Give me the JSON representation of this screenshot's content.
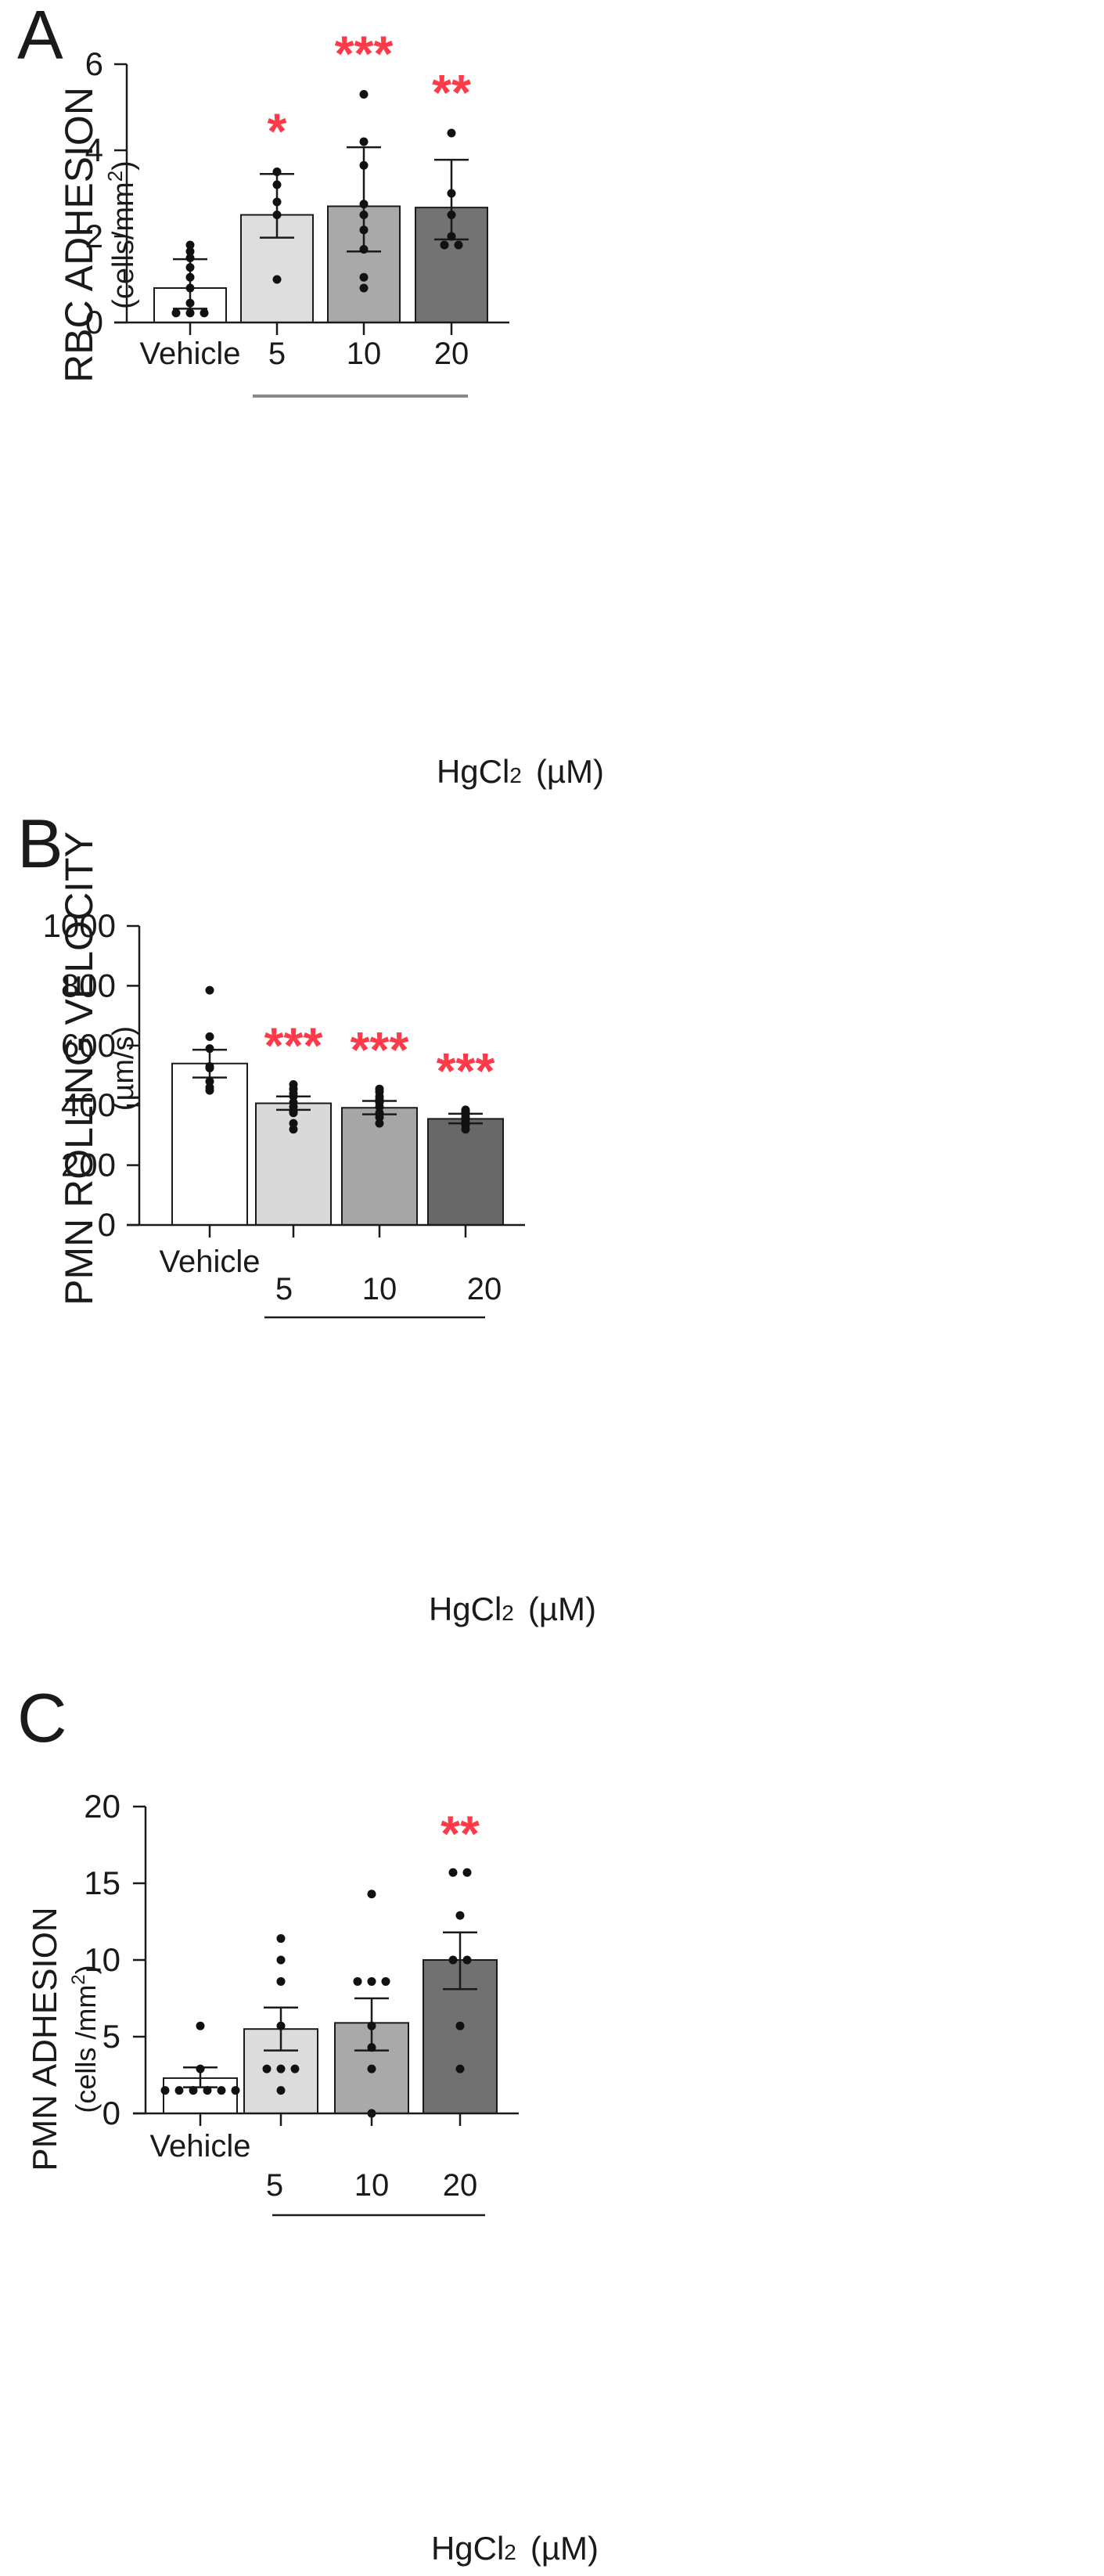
{
  "figure": {
    "colors": {
      "axis": "#1a1a1a",
      "star": "#ff3b4a",
      "point": "#111111",
      "bar_fills": [
        "#ffffff",
        "#dedede",
        "#a9a9a9",
        "#737373"
      ],
      "bar_fills_b": [
        "#ffffff",
        "#d9d9d9",
        "#a6a6a6",
        "#686868"
      ],
      "bar_fills_c": [
        "#ffffff",
        "#dcdcdc",
        "#a9a9a9",
        "#717171"
      ]
    }
  },
  "chart_data": [
    {
      "panel_label": "A",
      "type": "bar",
      "ylabel_main": "RBC ADHESION",
      "ylabel_unit": "(cells/mm",
      "ylabel_sup": "2",
      "ylabel_close": ")",
      "categories": [
        "Vehicle",
        "5",
        "10",
        "20"
      ],
      "group_label_main": "HgCl",
      "group_label_sub": "2",
      "group_label_unit": "(µM)",
      "ylim": [
        0,
        6
      ],
      "yticks": [
        0,
        2,
        4,
        6
      ],
      "values": [
        0.8,
        2.5,
        2.7,
        2.67
      ],
      "error_low": [
        0.32,
        1.97,
        1.65,
        1.93
      ],
      "error_high": [
        1.47,
        3.45,
        4.07,
        3.78
      ],
      "significance": [
        "",
        "*",
        "***",
        "**"
      ],
      "points": [
        [
          1.8,
          1.65,
          1.5,
          1.28,
          1.05,
          0.8,
          0.45,
          0.22,
          0.22,
          0.22
        ],
        [
          3.5,
          3.2,
          2.8,
          2.5,
          1.0
        ],
        [
          5.3,
          4.2,
          3.65,
          2.75,
          2.5,
          2.15,
          1.7,
          1.05,
          0.8
        ],
        [
          4.4,
          3.0,
          2.5,
          2.0,
          1.8,
          1.8
        ]
      ]
    },
    {
      "panel_label": "B",
      "type": "bar",
      "ylabel_main": "PMN ROLLING VELOCITY",
      "ylabel_unit": "(µm/s)",
      "categories": [
        "Vehicle",
        "5",
        "10",
        "20"
      ],
      "group_label_main": "HgCl",
      "group_label_sub": "2",
      "group_label_unit": "(µM)",
      "ylim": [
        0,
        1000
      ],
      "yticks": [
        0,
        200,
        400,
        600,
        800,
        1000
      ],
      "values": [
        540,
        407,
        392,
        355
      ],
      "error_low": [
        493,
        385,
        370,
        340
      ],
      "error_high": [
        586,
        430,
        415,
        372
      ],
      "significance": [
        "",
        "***",
        "***",
        "***"
      ],
      "points": [
        [
          785,
          630,
          590,
          530,
          525,
          480,
          460,
          450
        ],
        [
          470,
          455,
          440,
          430,
          410,
          395,
          380,
          375,
          340,
          320
        ],
        [
          455,
          445,
          430,
          420,
          410,
          395,
          375,
          360,
          340
        ],
        [
          385,
          380,
          375,
          370,
          360,
          355,
          345,
          335,
          320
        ]
      ]
    },
    {
      "panel_label": "C",
      "type": "bar",
      "ylabel_main": "PMN ADHESION",
      "ylabel_unit": "(cells /mm",
      "ylabel_sup": "2",
      "ylabel_close": ")",
      "categories": [
        "Vehicle",
        "5",
        "10",
        "20"
      ],
      "group_label_main": "HgCl",
      "group_label_sub": "2",
      "group_label_unit": "(µM)",
      "ylim": [
        0,
        20
      ],
      "yticks": [
        0,
        5,
        10,
        15,
        20
      ],
      "values": [
        2.3,
        5.5,
        5.9,
        10.0
      ],
      "error_low": [
        1.7,
        4.1,
        4.1,
        8.1
      ],
      "error_high": [
        3.0,
        6.9,
        7.5,
        11.8
      ],
      "significance": [
        "",
        "",
        "",
        "**"
      ],
      "points": [
        [
          5.7,
          2.9,
          1.5,
          1.5,
          1.5,
          1.5,
          1.5,
          1.5
        ],
        [
          11.4,
          10.0,
          8.6,
          5.7,
          2.9,
          2.9,
          2.9,
          1.5
        ],
        [
          14.3,
          8.6,
          8.6,
          8.6,
          5.7,
          4.3,
          2.9,
          0.0
        ],
        [
          15.7,
          15.7,
          12.9,
          10.0,
          10.0,
          5.7,
          2.9
        ]
      ]
    }
  ]
}
